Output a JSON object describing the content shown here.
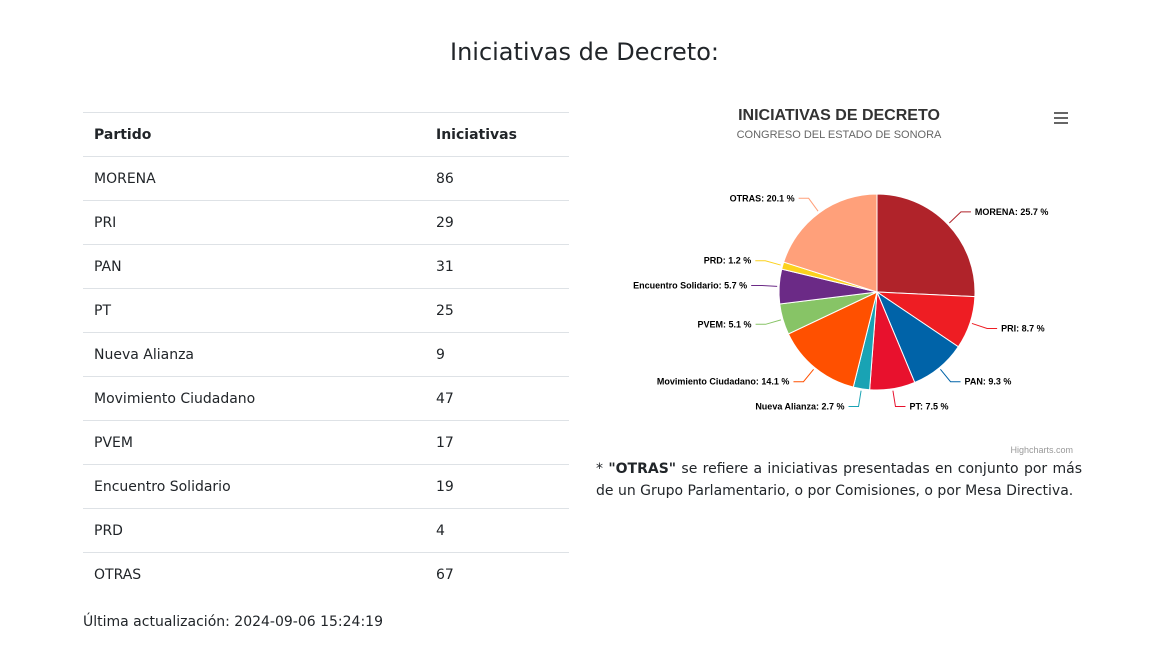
{
  "page": {
    "title": "Iniciativas de Decreto:",
    "last_update": "Última actualización: 2024-09-06 15:24:19",
    "footnote_prefix": "* ",
    "footnote_term": "\"OTRAS\"",
    "footnote_text": " se refiere a iniciativas presentadas en conjunto por más de un Grupo Parlamentario, o por Comisiones, o por Mesa Directiva."
  },
  "table": {
    "headers": [
      "Partido",
      "Iniciativas"
    ],
    "rows": [
      [
        "MORENA",
        "86"
      ],
      [
        "PRI",
        "29"
      ],
      [
        "PAN",
        "31"
      ],
      [
        "PT",
        "25"
      ],
      [
        "Nueva Alianza",
        "9"
      ],
      [
        "Movimiento Ciudadano",
        "47"
      ],
      [
        "PVEM",
        "17"
      ],
      [
        "Encuentro Solidario",
        "19"
      ],
      [
        "PRD",
        "4"
      ],
      [
        "OTRAS",
        "67"
      ]
    ]
  },
  "chart_data": {
    "type": "pie",
    "title": "INICIATIVAS DE DECRETO",
    "subtitle": "CONGRESO DEL ESTADO DE SONORA",
    "credits": "Highcharts.com",
    "slices": [
      {
        "name": "MORENA",
        "value": 86,
        "percent": "25.7",
        "color": "#b0232a"
      },
      {
        "name": "PRI",
        "value": 29,
        "percent": "8.7",
        "color": "#ee1d23"
      },
      {
        "name": "PAN",
        "value": 31,
        "percent": "9.3",
        "color": "#0063a8"
      },
      {
        "name": "PT",
        "value": 25,
        "percent": "7.5",
        "color": "#e8112d"
      },
      {
        "name": "Nueva Alianza",
        "value": 9,
        "percent": "2.7",
        "color": "#19a3b4"
      },
      {
        "name": "Movimiento Ciudadano",
        "value": 47,
        "percent": "14.1",
        "color": "#ff5000"
      },
      {
        "name": "PVEM",
        "value": 17,
        "percent": "5.1",
        "color": "#87c466"
      },
      {
        "name": "Encuentro Solidario",
        "value": 19,
        "percent": "5.7",
        "color": "#6b2a86"
      },
      {
        "name": "PRD",
        "value": 4,
        "percent": "1.2",
        "color": "#fcd21e"
      },
      {
        "name": "OTRAS",
        "value": 67,
        "percent": "20.1",
        "color": "#ffa07a"
      }
    ]
  }
}
